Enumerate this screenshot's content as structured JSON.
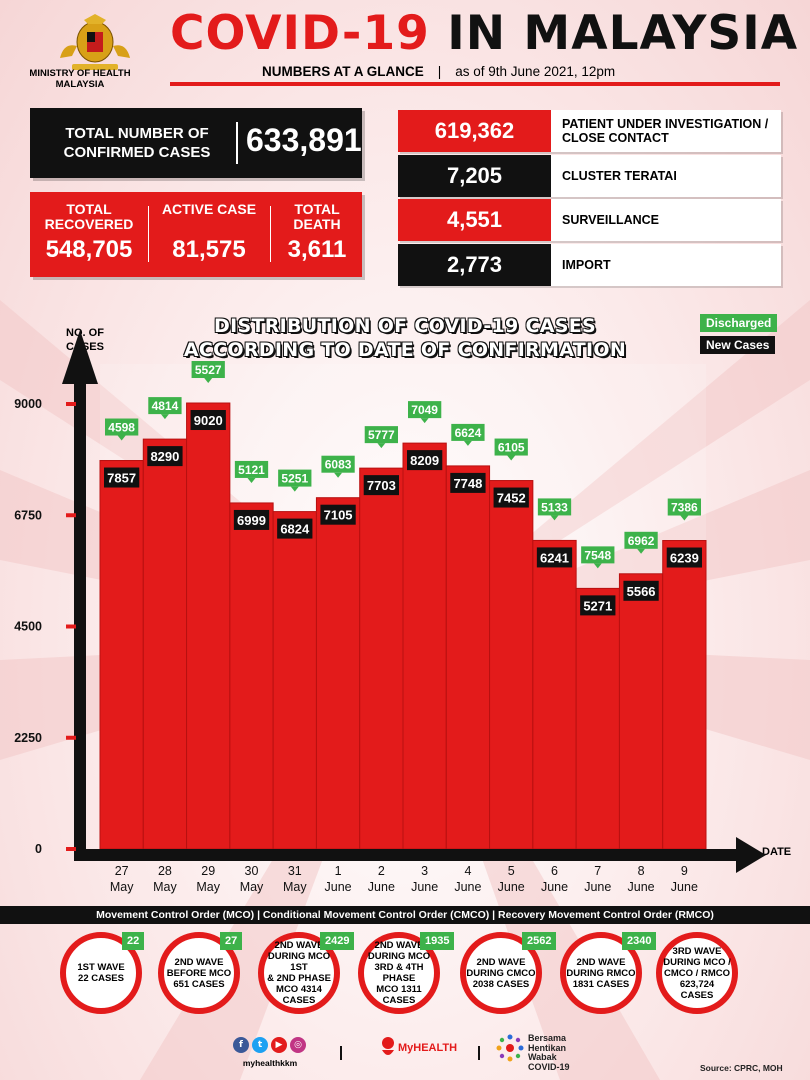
{
  "colors": {
    "red": "#e31b1b",
    "black": "#111111",
    "green": "#3db24a",
    "white": "#ffffff"
  },
  "header": {
    "ministry": "MINISTRY OF HEALTH MALAYSIA",
    "title_part1": "COVID-19",
    "title_part2": "IN MALAYSIA",
    "subtitle": "NUMBERS AT A GLANCE",
    "separator": "|",
    "as_of": "as of 9th June 2021, 12pm"
  },
  "summary": {
    "total_label": "TOTAL NUMBER OF CONFIRMED CASES",
    "total_value": "633,891",
    "stats": [
      {
        "label": "TOTAL RECOVERED",
        "value": "548,705"
      },
      {
        "label": "ACTIVE CASE",
        "value": "81,575"
      },
      {
        "label": "TOTAL DEATH",
        "value": "3,611"
      }
    ]
  },
  "categories_table": [
    {
      "value": "619,362",
      "label": "PATIENT UNDER INVESTIGATION / CLOSE CONTACT",
      "color": "#e31b1b"
    },
    {
      "value": "7,205",
      "label": "CLUSTER TERATAI",
      "color": "#111111"
    },
    {
      "value": "4,551",
      "label": "SURVEILLANCE",
      "color": "#e31b1b"
    },
    {
      "value": "2,773",
      "label": "IMPORT",
      "color": "#111111"
    }
  ],
  "chart_data": {
    "type": "bar",
    "title": "DISTRIBUTION OF COVID-19 CASES ACCORDING TO DATE OF CONFIRMATION",
    "ylabel": "NO. OF CASES",
    "xlabel": "DATE",
    "ylim": [
      0,
      9000
    ],
    "yticks": [
      0,
      2250,
      4500,
      6750,
      9000
    ],
    "categories": [
      [
        "27",
        "May"
      ],
      [
        "28",
        "May"
      ],
      [
        "29",
        "May"
      ],
      [
        "30",
        "May"
      ],
      [
        "31",
        "May"
      ],
      [
        "1",
        "June"
      ],
      [
        "2",
        "June"
      ],
      [
        "3",
        "June"
      ],
      [
        "4",
        "June"
      ],
      [
        "5",
        "June"
      ],
      [
        "6",
        "June"
      ],
      [
        "7",
        "June"
      ],
      [
        "8",
        "June"
      ],
      [
        "9",
        "June"
      ]
    ],
    "legend": [
      "Discharged",
      "New Cases"
    ],
    "series": [
      {
        "name": "New Cases",
        "values": [
          7857,
          8290,
          9020,
          6999,
          6824,
          7105,
          7703,
          8209,
          7748,
          7452,
          6241,
          5271,
          5566,
          6239
        ]
      },
      {
        "name": "Discharged",
        "values": [
          4598,
          4814,
          5527,
          5121,
          5251,
          6083,
          5777,
          7049,
          6624,
          6105,
          5133,
          7548,
          6962,
          7386
        ]
      }
    ],
    "grid": false,
    "legend_position": "top-right"
  },
  "footer_band": "Movement Control Order (MCO) | Conditional Movement Control Order (CMCO) | Recovery Movement Control Order (RMCO)",
  "waves": [
    {
      "badge": "22",
      "lines": [
        "1ST WAVE",
        "22 CASES"
      ]
    },
    {
      "badge": "27",
      "lines": [
        "2ND WAVE",
        "BEFORE MCO",
        "651 CASES"
      ]
    },
    {
      "badge": "2429",
      "lines": [
        "2ND WAVE",
        "DURING MCO 1ST",
        "& 2ND PHASE",
        "MCO 4314",
        "CASES"
      ]
    },
    {
      "badge": "1935",
      "lines": [
        "2ND WAVE",
        "DURING MCO",
        "3RD & 4TH PHASE",
        "MCO 1311",
        "CASES"
      ]
    },
    {
      "badge": "2562",
      "lines": [
        "2ND WAVE",
        "DURING CMCO",
        "2038 CASES"
      ]
    },
    {
      "badge": "2340",
      "lines": [
        "2ND WAVE",
        "DURING RMCO",
        "1831 CASES"
      ]
    },
    {
      "badge": "",
      "lines": [
        "3RD WAVE",
        "DURING MCO /",
        "CMCO / RMCO",
        "623,724",
        "CASES"
      ]
    }
  ],
  "footer": {
    "handle": "myhealthkkm",
    "social_icons": [
      "facebook-icon",
      "twitter-icon",
      "youtube-icon",
      "instagram-icon"
    ],
    "myhealth": "MyHEALTH",
    "bersama": [
      "Bersama",
      "Hentikan",
      "Wabak",
      "COVID-19"
    ],
    "source": "Source: CPRC, MOH"
  }
}
